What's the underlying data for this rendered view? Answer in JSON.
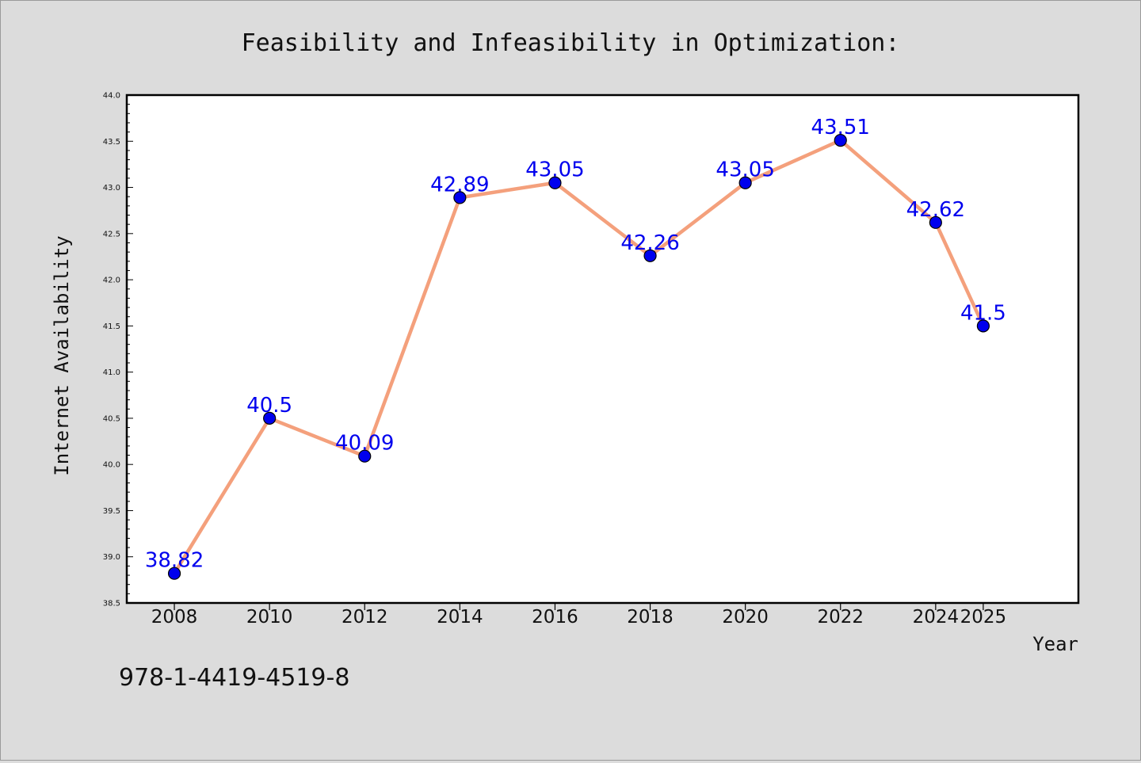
{
  "chart_data": {
    "type": "line",
    "title": "Feasibility and Infeasibility in Optimization:",
    "xlabel": "Year",
    "ylabel": "Internet Availability",
    "x": [
      "2008",
      "2010",
      "2012",
      "2014",
      "2016",
      "2018",
      "2020",
      "2022",
      "2024",
      "2025"
    ],
    "series": [
      {
        "values": [
          38.82,
          40.5,
          40.09,
          42.89,
          43.05,
          42.26,
          43.05,
          43.51,
          42.62,
          41.5
        ],
        "data_labels": [
          "38.82",
          "40.5",
          "40.09",
          "42.89",
          "43.05",
          "42.26",
          "43.05",
          "43.51",
          "42.62",
          "41.5"
        ],
        "line_color": "#f4a07c",
        "marker_color": "#0000ee"
      }
    ],
    "ylim": [
      38.5,
      44.0
    ],
    "yticks": [
      "38.5",
      "39.0",
      "39.5",
      "40.0",
      "40.5",
      "41.0",
      "41.5",
      "42.0",
      "42.5",
      "43.0",
      "43.5",
      "44.0"
    ],
    "grid": false,
    "legend": "none"
  },
  "footer": {
    "isbn": "978-1-4419-4519-8"
  },
  "colors": {
    "background": "#dcdcdc",
    "plot_area": "#ffffff",
    "data_label": "#0000ee"
  }
}
